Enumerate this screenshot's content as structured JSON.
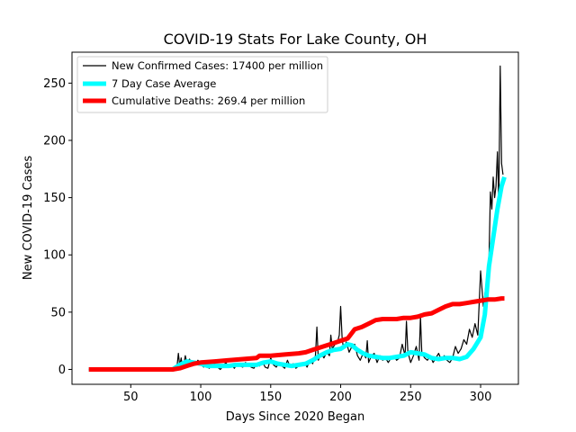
{
  "chart_data": {
    "type": "line",
    "title": "COVID-19 Stats For Lake County, OH",
    "xlabel": "Days Since 2020 Began",
    "ylabel": "New COVID-19 Cases",
    "xlim": [
      8,
      327
    ],
    "ylim": [
      -13,
      277
    ],
    "xticks": [
      50,
      100,
      150,
      200,
      250,
      300
    ],
    "yticks": [
      0,
      50,
      100,
      150,
      200,
      250
    ],
    "grid": false,
    "legend_position": "top-left",
    "series": [
      {
        "name": "New Confirmed Cases: 17400 per million",
        "color": "#000000",
        "x": [
          20,
          30,
          40,
          50,
          60,
          70,
          80,
          83,
          84,
          85,
          86,
          87,
          88,
          89,
          90,
          92,
          94,
          96,
          98,
          100,
          102,
          104,
          106,
          108,
          110,
          112,
          114,
          116,
          118,
          120,
          122,
          124,
          126,
          128,
          130,
          132,
          134,
          136,
          138,
          140,
          142,
          144,
          146,
          148,
          150,
          152,
          154,
          156,
          158,
          160,
          162,
          164,
          166,
          168,
          170,
          172,
          174,
          176,
          178,
          180,
          182,
          183,
          184,
          186,
          188,
          190,
          192,
          193,
          194,
          196,
          198,
          199,
          200,
          201,
          202,
          204,
          206,
          208,
          210,
          212,
          214,
          216,
          218,
          219,
          220,
          222,
          224,
          226,
          228,
          230,
          232,
          234,
          236,
          238,
          240,
          242,
          244,
          246,
          247,
          248,
          250,
          252,
          254,
          256,
          257,
          258,
          260,
          262,
          264,
          266,
          268,
          270,
          272,
          274,
          276,
          278,
          280,
          282,
          284,
          286,
          288,
          290,
          292,
          294,
          296,
          298,
          300,
          302,
          304,
          306,
          307,
          308,
          309,
          310,
          311,
          312,
          313,
          314,
          315,
          316
        ],
        "y": [
          0,
          0,
          0,
          0,
          0,
          0,
          0,
          2,
          14,
          3,
          10,
          2,
          5,
          12,
          6,
          9,
          3,
          4,
          8,
          5,
          2,
          4,
          1,
          3,
          5,
          2,
          0,
          3,
          6,
          2,
          4,
          1,
          5,
          3,
          2,
          6,
          4,
          2,
          1,
          5,
          3,
          7,
          2,
          1,
          10,
          4,
          2,
          6,
          3,
          1,
          8,
          2,
          5,
          1,
          3,
          4,
          6,
          2,
          8,
          5,
          12,
          37,
          8,
          14,
          10,
          15,
          12,
          30,
          18,
          22,
          25,
          30,
          55,
          28,
          18,
          24,
          15,
          20,
          22,
          12,
          8,
          14,
          10,
          25,
          6,
          12,
          14,
          6,
          12,
          8,
          10,
          6,
          10,
          12,
          8,
          10,
          22,
          12,
          42,
          15,
          6,
          12,
          20,
          8,
          46,
          14,
          10,
          8,
          12,
          6,
          10,
          14,
          8,
          12,
          8,
          6,
          10,
          20,
          14,
          18,
          26,
          22,
          35,
          28,
          40,
          30,
          86,
          55,
          75,
          95,
          155,
          140,
          168,
          150,
          160,
          190,
          145,
          265,
          180,
          170
        ]
      },
      {
        "name": "7 Day Case Average",
        "color": "#00ffff",
        "x": [
          20,
          40,
          60,
          80,
          85,
          90,
          95,
          100,
          105,
          110,
          115,
          120,
          125,
          130,
          135,
          140,
          145,
          150,
          155,
          160,
          165,
          170,
          175,
          180,
          185,
          190,
          195,
          200,
          205,
          208,
          212,
          216,
          220,
          225,
          230,
          235,
          240,
          245,
          250,
          255,
          260,
          265,
          270,
          275,
          280,
          285,
          290,
          295,
          300,
          303,
          306,
          309,
          312,
          315,
          317
        ],
        "y": [
          0,
          0,
          0,
          0,
          4,
          7,
          6,
          5,
          3,
          3,
          3,
          3,
          4,
          4,
          4,
          4,
          6,
          7,
          5,
          4,
          3,
          4,
          5,
          8,
          12,
          15,
          17,
          18,
          22,
          21,
          17,
          14,
          12,
          11,
          10,
          10,
          11,
          12,
          15,
          14,
          13,
          10,
          9,
          10,
          10,
          9,
          11,
          18,
          28,
          48,
          90,
          115,
          140,
          160,
          168
        ]
      },
      {
        "name": "Cumulative Deaths: 269.4 per million",
        "color": "#ff0000",
        "x": [
          20,
          40,
          60,
          80,
          85,
          90,
          95,
          100,
          110,
          120,
          130,
          140,
          142,
          150,
          160,
          170,
          175,
          180,
          185,
          190,
          195,
          200,
          205,
          210,
          215,
          220,
          225,
          230,
          240,
          245,
          250,
          255,
          260,
          265,
          270,
          275,
          280,
          285,
          290,
          295,
          300,
          305,
          310,
          315,
          317
        ],
        "y": [
          0,
          0,
          0,
          0,
          1,
          3,
          5,
          6,
          7,
          8,
          9,
          10,
          12,
          12,
          13,
          14,
          15,
          17,
          19,
          21,
          23,
          25,
          27,
          35,
          37,
          40,
          43,
          44,
          44,
          45,
          45,
          46,
          48,
          49,
          52,
          55,
          57,
          57,
          58,
          59,
          60,
          61,
          61,
          62,
          62
        ]
      }
    ]
  }
}
